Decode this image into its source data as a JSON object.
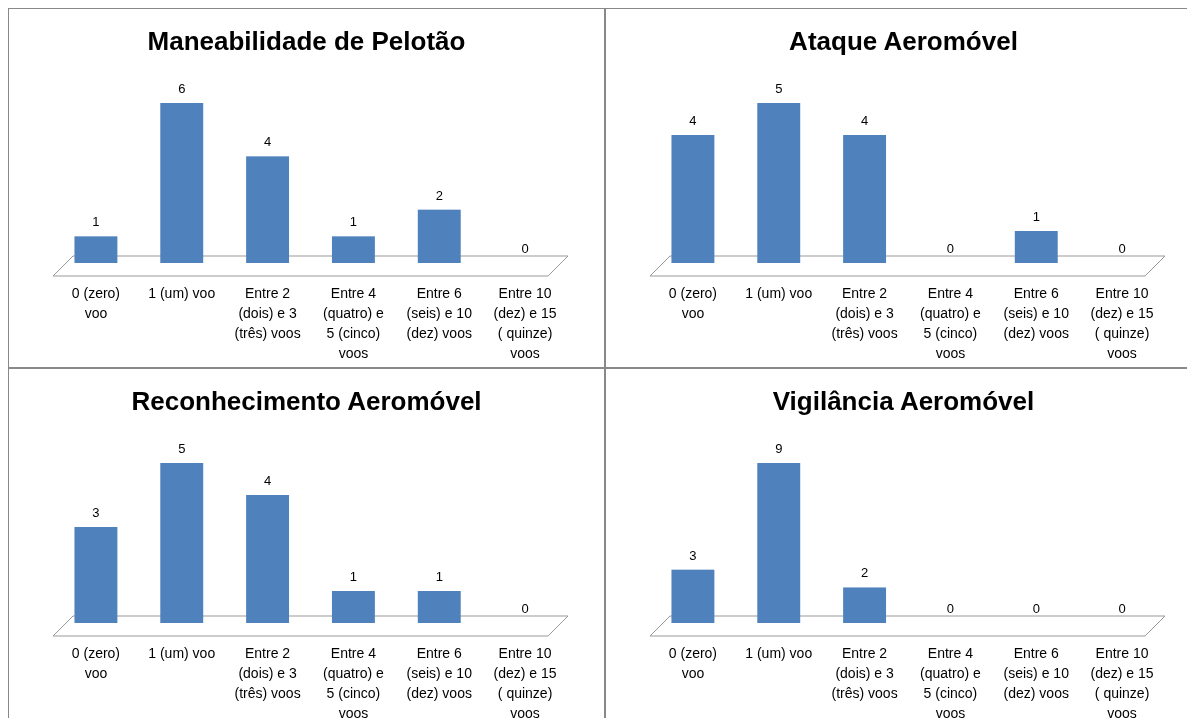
{
  "chart_data": [
    {
      "type": "bar",
      "title": "Maneabilidade de Pelotão",
      "categories": [
        "0 (zero) voo",
        "1 (um) voo",
        "Entre 2 (dois) e 3 (três) voos",
        "Entre 4 (quatro) e 5 (cinco) voos",
        "Entre 6 (seis) e 10 (dez) voos",
        "Entre 10 (dez) e 15 ( quinze) voos"
      ],
      "values": [
        1,
        6,
        4,
        1,
        2,
        0
      ],
      "color": "#4f81bd",
      "data_labels": true
    },
    {
      "type": "bar",
      "title": "Ataque Aeromóvel",
      "categories": [
        "0 (zero) voo",
        "1 (um) voo",
        "Entre 2 (dois) e 3 (três) voos",
        "Entre 4 (quatro) e 5 (cinco) voos",
        "Entre 6 (seis) e 10 (dez) voos",
        "Entre 10 (dez) e 15 ( quinze) voos"
      ],
      "values": [
        4,
        5,
        4,
        0,
        1,
        0
      ],
      "color": "#4f81bd",
      "data_labels": true
    },
    {
      "type": "bar",
      "title": "Reconhecimento Aeromóvel",
      "categories": [
        "0 (zero) voo",
        "1 (um) voo",
        "Entre 2 (dois) e 3 (três) voos",
        "Entre 4 (quatro) e 5 (cinco) voos",
        "Entre 6 (seis) e 10 (dez) voos",
        "Entre 10 (dez) e 15 ( quinze) voos"
      ],
      "values": [
        3,
        5,
        4,
        1,
        1,
        0
      ],
      "color": "#4f81bd",
      "data_labels": true
    },
    {
      "type": "bar",
      "title": "Vigilância Aeromóvel",
      "categories": [
        "0 (zero) voo",
        "1 (um) voo",
        "Entre 2 (dois) e 3 (três) voos",
        "Entre 4 (quatro) e 5 (cinco) voos",
        "Entre 6 (seis) e 10 (dez) voos",
        "Entre 10 (dez) e 15 ( quinze) voos"
      ],
      "values": [
        3,
        9,
        2,
        0,
        0,
        0
      ],
      "color": "#4f81bd",
      "data_labels": true
    }
  ]
}
